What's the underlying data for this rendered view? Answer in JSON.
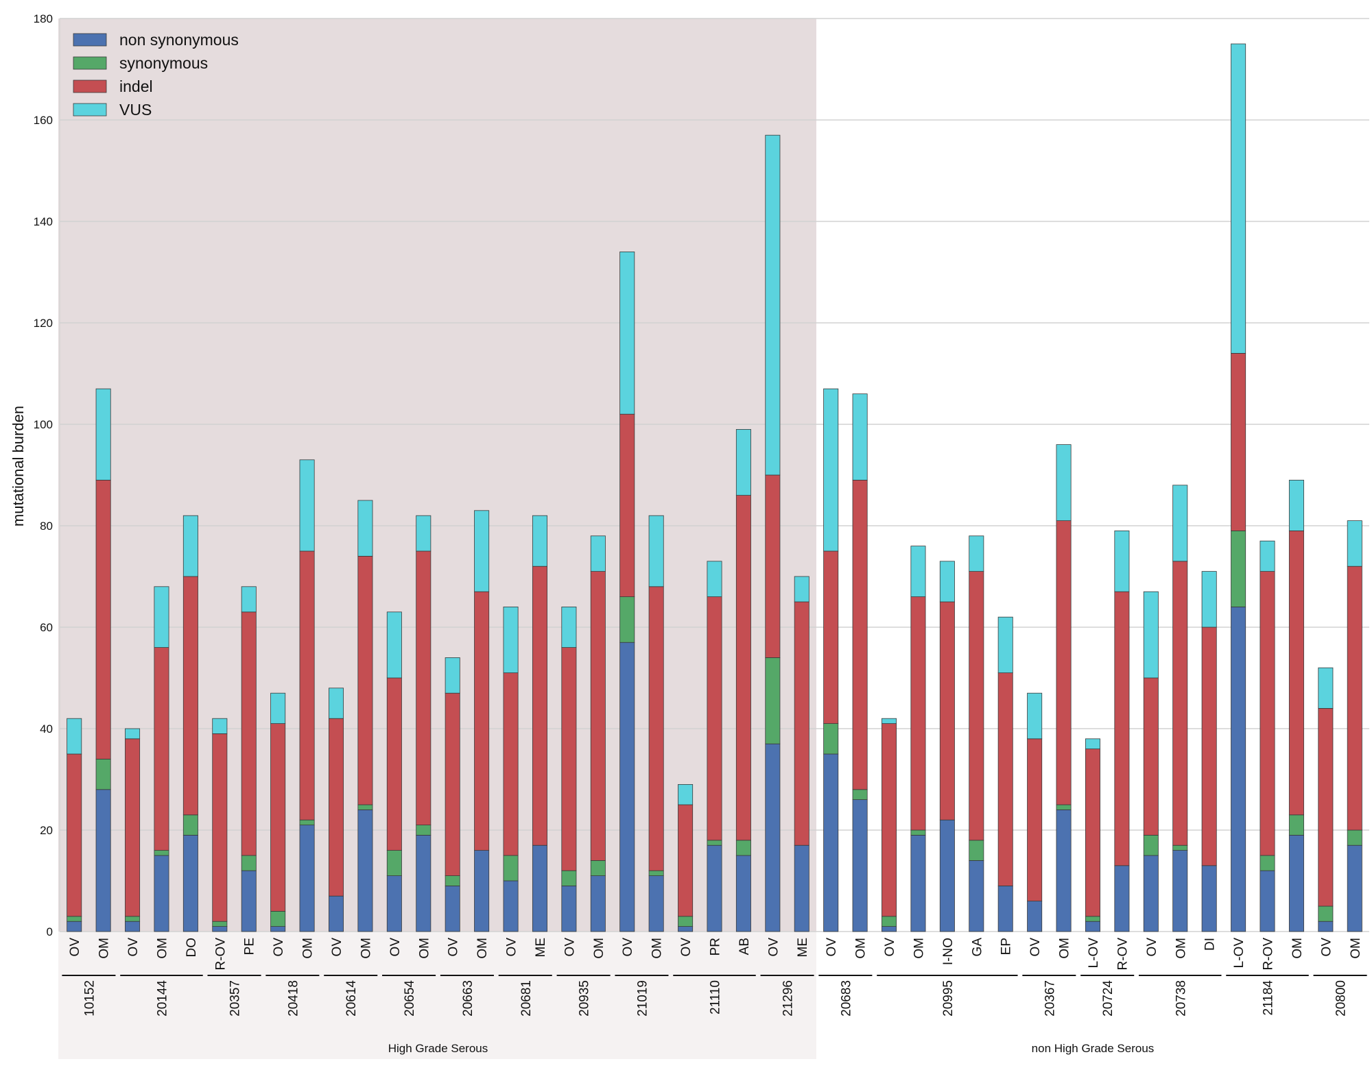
{
  "chart_data": {
    "type": "bar",
    "stacked": true,
    "ylabel": "mutational burden",
    "ylim": [
      0,
      180
    ],
    "yticks": [
      0,
      20,
      40,
      60,
      80,
      100,
      120,
      140,
      160,
      180
    ],
    "grid": true,
    "legend_position": "top-left",
    "colors": {
      "non_synonymous": "#4c72b0",
      "synonymous": "#55a868",
      "indel": "#c44e52",
      "VUS": "#5bd3de",
      "hgs_background": "#e5dcdd"
    },
    "categories": [
      "OV",
      "OM",
      "OV",
      "OM",
      "DO",
      "R-OV",
      "PE",
      "OV",
      "OM",
      "OV",
      "OM",
      "OV",
      "OM",
      "OV",
      "OM",
      "OV",
      "ME",
      "OV",
      "OM",
      "OV",
      "OM",
      "OV",
      "PR",
      "AB",
      "OV",
      "ME",
      "OV",
      "OM",
      "OV",
      "OM",
      "I-NO",
      "GA",
      "EP",
      "OV",
      "OM",
      "L-OV",
      "R-OV",
      "OV",
      "OM",
      "DI",
      "L-OV",
      "R-OV",
      "OM",
      "OV",
      "OM"
    ],
    "series": [
      {
        "name": "non synonymous",
        "key": "non_synonymous",
        "values": [
          2,
          28,
          2,
          15,
          19,
          1,
          12,
          1,
          21,
          7,
          24,
          11,
          19,
          9,
          16,
          10,
          17,
          9,
          11,
          57,
          11,
          1,
          17,
          15,
          37,
          17,
          35,
          26,
          1,
          19,
          22,
          14,
          9,
          6,
          24,
          2,
          13,
          15,
          16,
          13,
          64,
          12,
          19,
          2,
          17
        ]
      },
      {
        "name": "synonymous",
        "key": "synonymous",
        "values": [
          1,
          6,
          1,
          1,
          4,
          1,
          3,
          3,
          1,
          0,
          1,
          5,
          2,
          2,
          0,
          5,
          0,
          3,
          3,
          9,
          1,
          2,
          1,
          3,
          17,
          0,
          6,
          2,
          2,
          1,
          0,
          4,
          0,
          0,
          1,
          1,
          0,
          4,
          1,
          0,
          15,
          3,
          4,
          3,
          3
        ]
      },
      {
        "name": "indel",
        "key": "indel",
        "values": [
          32,
          55,
          35,
          40,
          47,
          37,
          48,
          37,
          53,
          35,
          49,
          34,
          54,
          36,
          51,
          36,
          55,
          44,
          57,
          36,
          56,
          22,
          48,
          68,
          36,
          48,
          34,
          61,
          38,
          46,
          43,
          53,
          42,
          32,
          56,
          33,
          54,
          31,
          56,
          47,
          35,
          56,
          56,
          39,
          52
        ]
      },
      {
        "name": "VUS",
        "key": "VUS",
        "values": [
          7,
          18,
          2,
          12,
          12,
          3,
          5,
          6,
          18,
          6,
          11,
          13,
          7,
          7,
          16,
          13,
          10,
          8,
          7,
          32,
          14,
          4,
          7,
          13,
          67,
          5,
          32,
          17,
          1,
          10,
          8,
          7,
          11,
          9,
          15,
          2,
          12,
          17,
          15,
          11,
          61,
          6,
          10,
          8,
          9
        ]
      }
    ],
    "patients": [
      {
        "id": "10152",
        "start": 0,
        "count": 2
      },
      {
        "id": "20144",
        "start": 2,
        "count": 3
      },
      {
        "id": "20357",
        "start": 5,
        "count": 2
      },
      {
        "id": "20418",
        "start": 7,
        "count": 2
      },
      {
        "id": "20614",
        "start": 9,
        "count": 2
      },
      {
        "id": "20654",
        "start": 11,
        "count": 2
      },
      {
        "id": "20663",
        "start": 13,
        "count": 2
      },
      {
        "id": "20681",
        "start": 15,
        "count": 2
      },
      {
        "id": "20935",
        "start": 17,
        "count": 2
      },
      {
        "id": "21019",
        "start": 19,
        "count": 2
      },
      {
        "id": "21110",
        "start": 21,
        "count": 3
      },
      {
        "id": "21296",
        "start": 24,
        "count": 2
      },
      {
        "id": "20683",
        "start": 26,
        "count": 2
      },
      {
        "id": "20995",
        "start": 28,
        "count": 5
      },
      {
        "id": "20367",
        "start": 33,
        "count": 2
      },
      {
        "id": "20724",
        "start": 35,
        "count": 2
      },
      {
        "id": "20738",
        "start": 37,
        "count": 3
      },
      {
        "id": "21184",
        "start": 40,
        "count": 3
      },
      {
        "id": "20800",
        "start": 43,
        "count": 2
      }
    ],
    "groups": [
      {
        "label": "High Grade Serous",
        "start": 0,
        "count": 26
      },
      {
        "label": "non High Grade Serous",
        "start": 26,
        "count": 19
      }
    ]
  }
}
